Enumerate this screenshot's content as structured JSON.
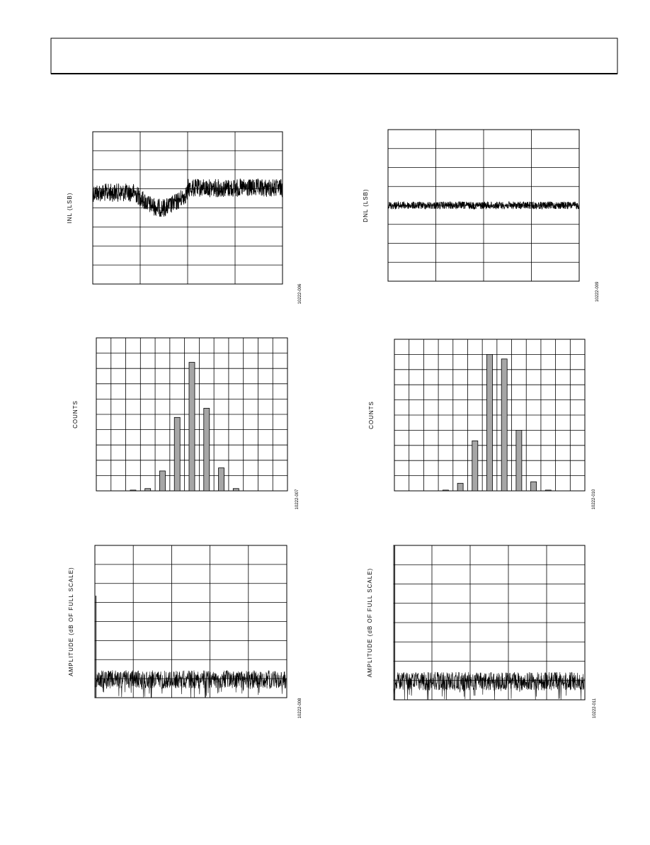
{
  "figures": [
    {
      "kind": "trace",
      "y_label": "INL (LSB)",
      "figure_code": "10222-006"
    },
    {
      "kind": "trace",
      "y_label": "DNL (LSB)",
      "figure_code": "10222-009"
    },
    {
      "kind": "histogram",
      "y_label": "COUNTS",
      "figure_code": "10222-007",
      "bars": [
        0,
        0,
        0.05,
        0.15,
        1.3,
        4.8,
        8.4,
        5.4,
        1.5,
        0.15,
        0,
        0,
        0
      ]
    },
    {
      "kind": "histogram",
      "y_label": "COUNTS",
      "figure_code": "10222-010",
      "bars": [
        0,
        0,
        0,
        0.05,
        0.5,
        3.3,
        9.0,
        8.7,
        4.0,
        0.6,
        0.05,
        0,
        0
      ]
    },
    {
      "kind": "spectrum",
      "y_label": "AMPLITUDE (dB OF FULL SCALE)",
      "figure_code": "10222-008"
    },
    {
      "kind": "spectrum",
      "y_label": "AMPLITUDE (dB OF FULL SCALE)",
      "figure_code": "10222-011"
    }
  ]
}
